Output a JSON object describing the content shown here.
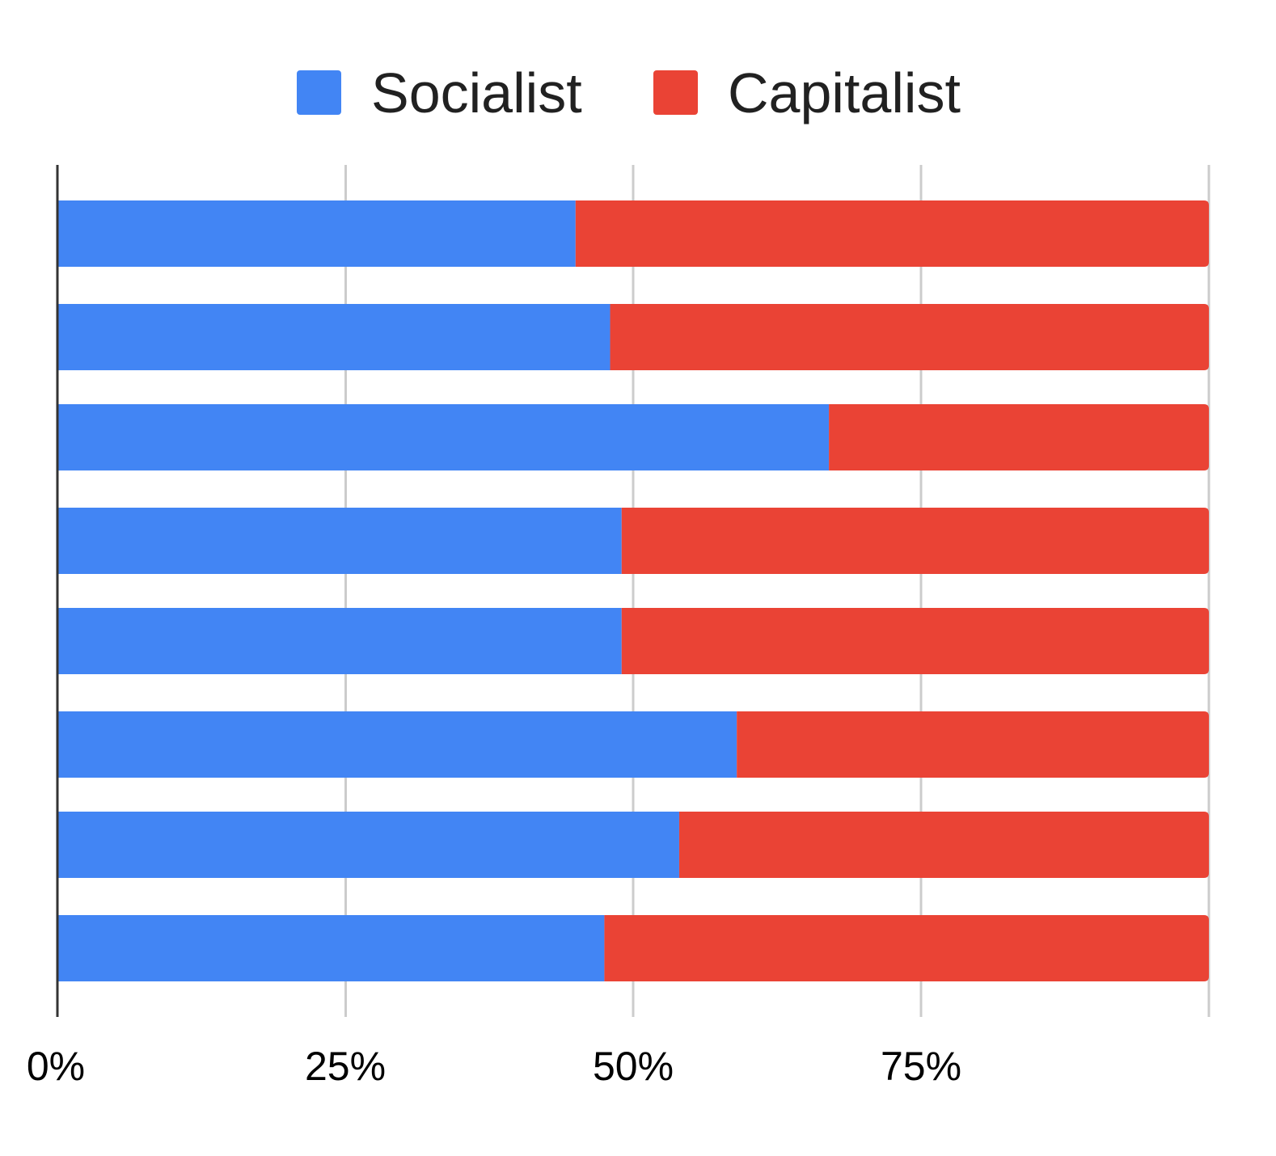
{
  "chart_data": {
    "type": "bar",
    "orientation": "horizontal",
    "stacked": "percent",
    "title": "",
    "xlabel": "",
    "ylabel": "",
    "xlim": [
      0,
      100
    ],
    "x_ticks": [
      "0%",
      "25%",
      "50%",
      "75%"
    ],
    "categories": [
      "",
      "",
      "",
      "",
      "",
      "",
      "",
      ""
    ],
    "series": [
      {
        "name": "Socialist",
        "color": "#4285F4",
        "values": [
          45,
          48,
          67,
          49,
          49,
          59,
          54,
          47.5
        ]
      },
      {
        "name": "Capitalist",
        "color": "#EA4335",
        "values": [
          55,
          52,
          33,
          51,
          51,
          41,
          46,
          52.5
        ]
      }
    ],
    "legend_position": "top",
    "grid": true,
    "gridline_color": "#CCCCCC",
    "axis_color": "#333333"
  }
}
